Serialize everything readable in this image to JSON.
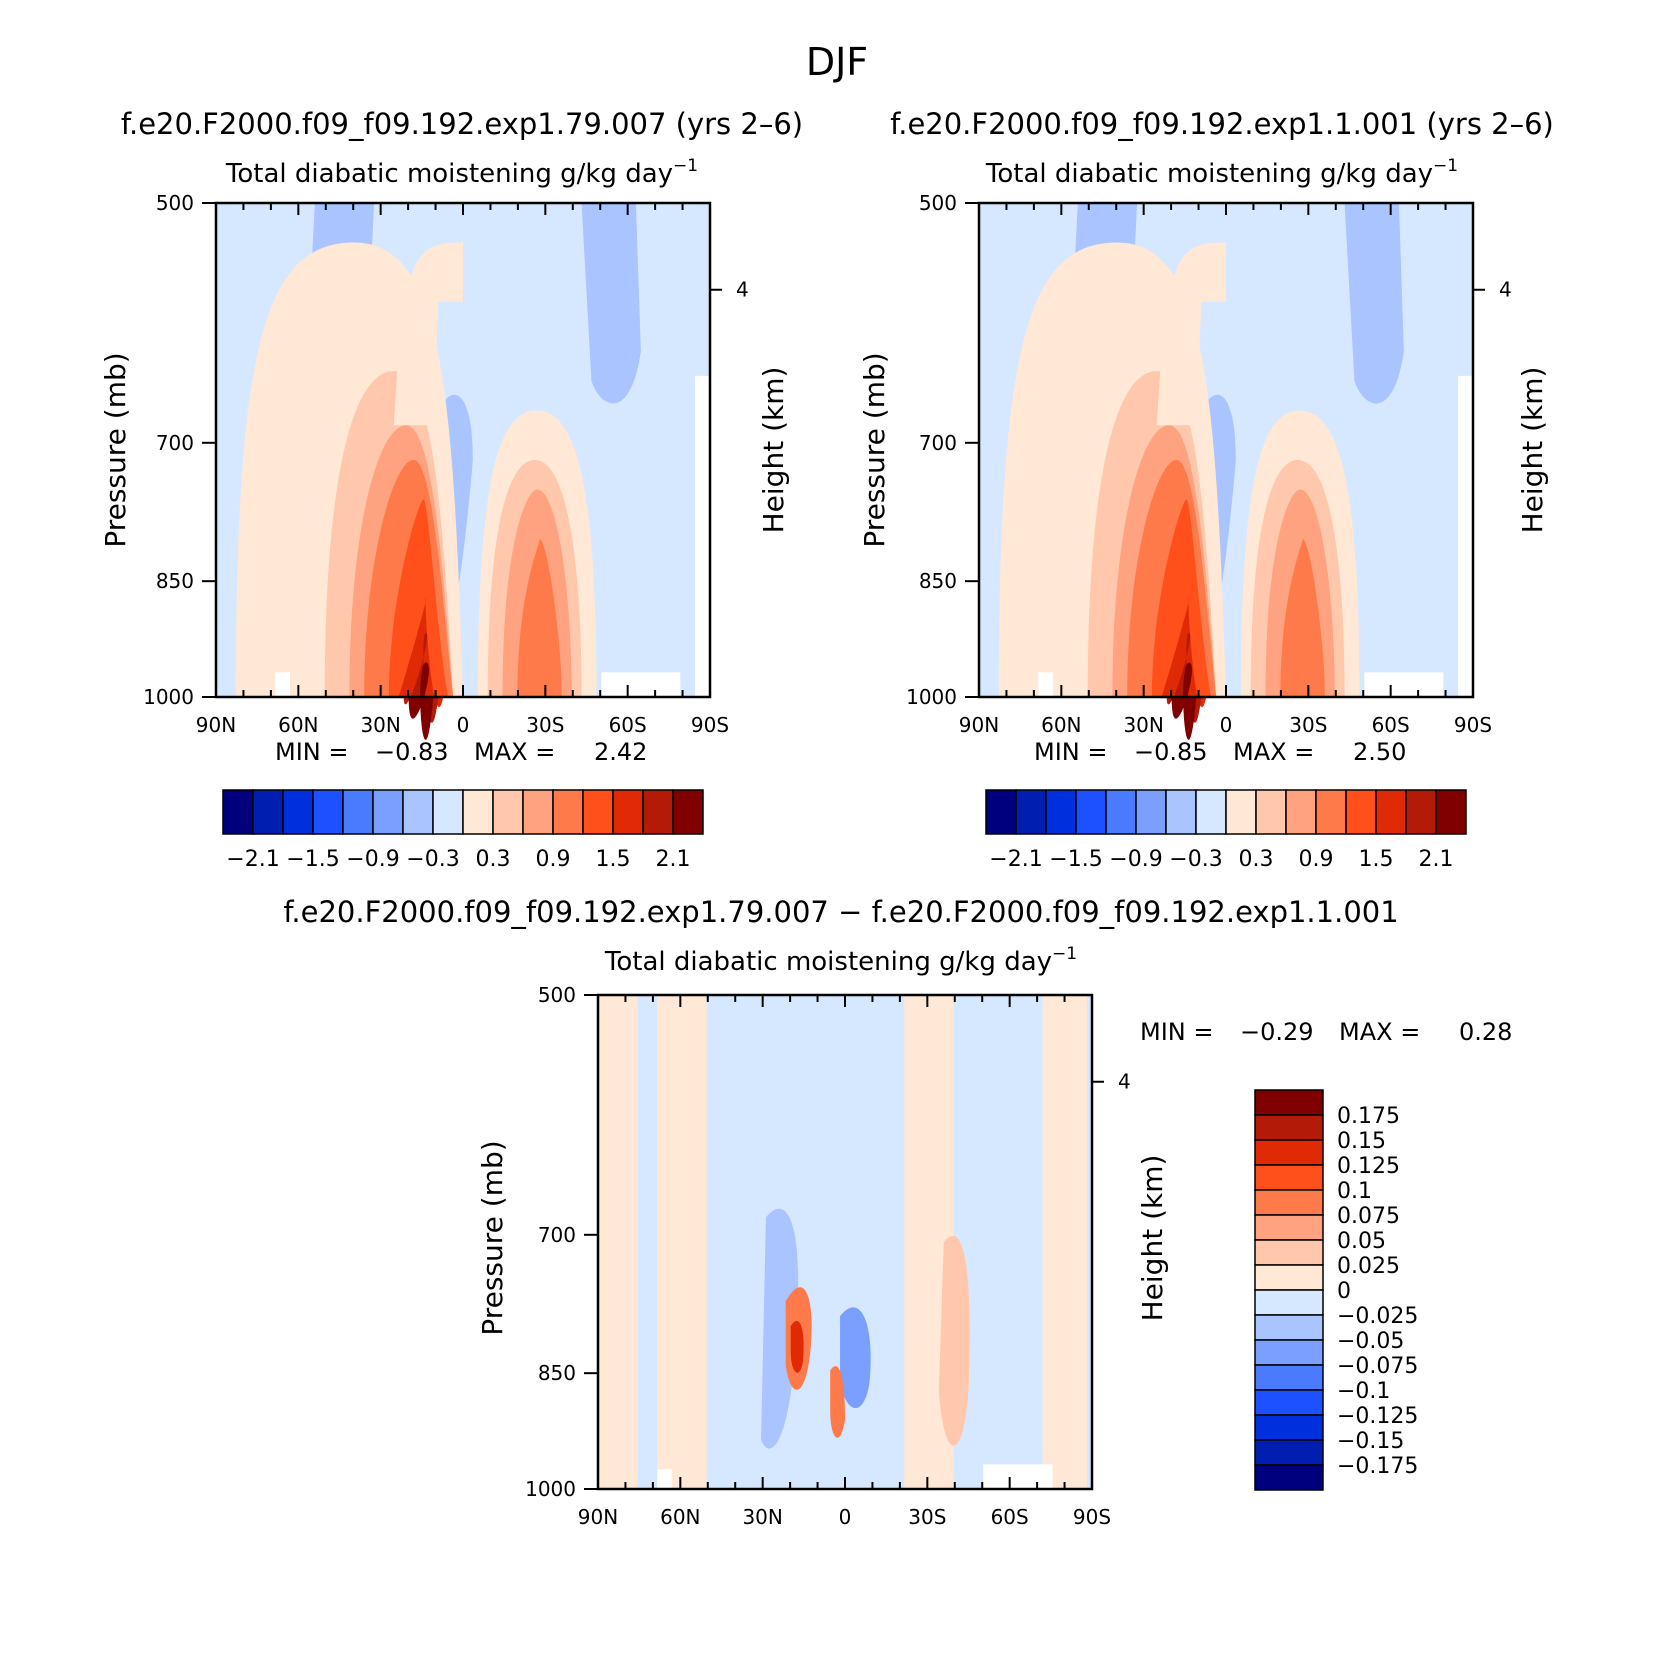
{
  "figure_title": "DJF",
  "colors": {
    "full": [
      "#00007f",
      "#001fb0",
      "#0030dd",
      "#1d50ff",
      "#4a7bff",
      "#7a9fff",
      "#a9c4ff",
      "#d6e8ff",
      "#ffe8d6",
      "#ffc8ad",
      "#ffa27f",
      "#ff7a4a",
      "#ff4f1a",
      "#e02a05",
      "#b31a08",
      "#800000"
    ],
    "diff": [
      "#00007f",
      "#001fb0",
      "#0030dd",
      "#1d50ff",
      "#4a7bff",
      "#7a9fff",
      "#a9c4ff",
      "#d6e8ff",
      "#ffe8d6",
      "#ffc8ad",
      "#ffa27f",
      "#ff7a4a",
      "#ff4f1a",
      "#e02a05",
      "#b31a08",
      "#800000"
    ]
  },
  "chart_data": [
    {
      "type": "heatmap",
      "case_title": "f.e20.F2000.f09_f09.192.exp1.79.007 (yrs 2–6)",
      "title": "Total diabatic moistening",
      "units_main": "g/kg day",
      "units_exp": "−1",
      "ylabel": "Pressure (mb)",
      "ylabel_right": "Height (km)",
      "x_ticks": [
        "90N",
        "60N",
        "30N",
        "0",
        "30S",
        "60S",
        "90S"
      ],
      "y_ticks": [
        "500",
        "700",
        "850",
        "1000"
      ],
      "right_ticks": [
        "4"
      ],
      "min_label": "MIN =",
      "min_value": "−0.83",
      "max_label": "MAX =",
      "max_value": "2.42",
      "colorbar_labels": [
        "−2.1",
        "−1.5",
        "−0.9",
        "−0.3",
        "0.3",
        "0.9",
        "1.5",
        "2.1"
      ]
    },
    {
      "type": "heatmap",
      "case_title": "f.e20.F2000.f09_f09.192.exp1.1.001 (yrs 2–6)",
      "title": "Total diabatic moistening",
      "units_main": "g/kg day",
      "units_exp": "−1",
      "ylabel": "Pressure (mb)",
      "ylabel_right": "Height (km)",
      "x_ticks": [
        "90N",
        "60N",
        "30N",
        "0",
        "30S",
        "60S",
        "90S"
      ],
      "y_ticks": [
        "500",
        "700",
        "850",
        "1000"
      ],
      "right_ticks": [
        "4"
      ],
      "min_label": "MIN =",
      "min_value": "−0.85",
      "max_label": "MAX =",
      "max_value": "2.50",
      "colorbar_labels": [
        "−2.1",
        "−1.5",
        "−0.9",
        "−0.3",
        "0.3",
        "0.9",
        "1.5",
        "2.1"
      ]
    },
    {
      "type": "heatmap",
      "case_title": "f.e20.F2000.f09_f09.192.exp1.79.007 − f.e20.F2000.f09_f09.192.exp1.1.001",
      "title": "Total diabatic moistening",
      "units_main": "g/kg day",
      "units_exp": "−1",
      "ylabel": "Pressure (mb)",
      "ylabel_right": "Height (km)",
      "x_ticks": [
        "90N",
        "60N",
        "30N",
        "0",
        "30S",
        "60S",
        "90S"
      ],
      "y_ticks": [
        "500",
        "700",
        "850",
        "1000"
      ],
      "right_ticks": [
        "4"
      ],
      "min_label": "MIN =",
      "min_value": "−0.29",
      "max_label": "MAX =",
      "max_value": "0.28",
      "colorbar_labels": [
        "0.175",
        "0.15",
        "0.125",
        "0.1",
        "0.075",
        "0.05",
        "0.025",
        "0",
        "−0.025",
        "−0.05",
        "−0.075",
        "−0.1",
        "−0.125",
        "−0.15",
        "−0.175"
      ]
    }
  ]
}
